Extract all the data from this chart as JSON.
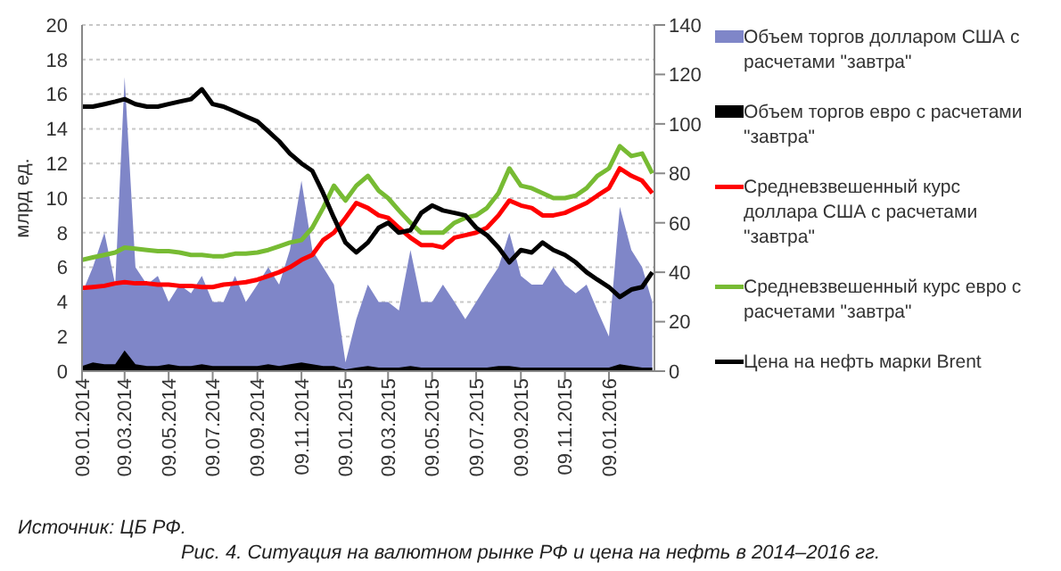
{
  "chart_data": {
    "type": "line",
    "ylabel": "млрд ед.",
    "x": [
      "2014-01-09",
      "2014-01-24",
      "2014-02-09",
      "2014-02-24",
      "2014-03-09",
      "2014-03-24",
      "2014-04-09",
      "2014-04-24",
      "2014-05-09",
      "2014-05-24",
      "2014-06-09",
      "2014-06-24",
      "2014-07-09",
      "2014-07-24",
      "2014-08-09",
      "2014-08-24",
      "2014-09-09",
      "2014-09-24",
      "2014-10-09",
      "2014-10-24",
      "2014-11-09",
      "2014-11-24",
      "2014-12-09",
      "2014-12-24",
      "2015-01-09",
      "2015-01-24",
      "2015-02-09",
      "2015-02-24",
      "2015-03-09",
      "2015-03-24",
      "2015-04-09",
      "2015-04-24",
      "2015-05-09",
      "2015-05-24",
      "2015-06-09",
      "2015-06-24",
      "2015-07-09",
      "2015-07-24",
      "2015-08-09",
      "2015-08-24",
      "2015-09-09",
      "2015-09-24",
      "2015-10-09",
      "2015-10-24",
      "2015-11-09",
      "2015-11-24",
      "2015-12-09",
      "2015-12-24",
      "2016-01-09",
      "2016-01-24",
      "2016-02-09",
      "2016-02-24",
      "2016-03-09"
    ],
    "series": [
      {
        "name": "Объем торгов долларом США с расчетами \"завтра\"",
        "type": "area",
        "color": "#7f86c8",
        "values": [
          4.5,
          6,
          8,
          5,
          17,
          6,
          5,
          5.5,
          4,
          5,
          4.5,
          5.5,
          4,
          4,
          5.5,
          4,
          5,
          6,
          5,
          7,
          11,
          7,
          6,
          5,
          0.5,
          3,
          5,
          4,
          4,
          3.5,
          7,
          4,
          4,
          5,
          4,
          3,
          4,
          5,
          6,
          8,
          5.5,
          5,
          5,
          6,
          5,
          4.5,
          5,
          3.5,
          2,
          9.5,
          7,
          6,
          4
        ]
      },
      {
        "name": "Объем торгов евро с расчетами \"завтра\"",
        "type": "area",
        "color": "#000000",
        "values": [
          0.3,
          0.5,
          0.4,
          0.4,
          1.2,
          0.4,
          0.3,
          0.3,
          0.4,
          0.3,
          0.3,
          0.4,
          0.3,
          0.3,
          0.3,
          0.3,
          0.3,
          0.4,
          0.3,
          0.4,
          0.5,
          0.4,
          0.3,
          0.3,
          0.1,
          0.2,
          0.3,
          0.2,
          0.2,
          0.2,
          0.3,
          0.2,
          0.2,
          0.2,
          0.2,
          0.2,
          0.2,
          0.2,
          0.3,
          0.3,
          0.2,
          0.2,
          0.2,
          0.2,
          0.2,
          0.2,
          0.2,
          0.2,
          0.2,
          0.4,
          0.3,
          0.2,
          0.2
        ]
      },
      {
        "name": "Средневзвешенный курс доллара США с расчетами \"завтра\"",
        "type": "line",
        "axis": "y2",
        "color": "#ff0000",
        "values": [
          33.6,
          34,
          34.5,
          35.5,
          36,
          35.5,
          35.5,
          35,
          35,
          34.5,
          34.5,
          34,
          34,
          35,
          35.5,
          36,
          37,
          38.5,
          40,
          42,
          45,
          47,
          53,
          56,
          62,
          68,
          66,
          63,
          62,
          58,
          54,
          51,
          51,
          50,
          54,
          55,
          56,
          58,
          63,
          69,
          67,
          66,
          63,
          63,
          64,
          66,
          68,
          71,
          74,
          82,
          79,
          77,
          72
        ]
      },
      {
        "name": "Средневзвешенный курс евро с расчетами \"завтра\"",
        "type": "line",
        "axis": "y2",
        "color": "#77bb33",
        "values": [
          45,
          46,
          47,
          48,
          50,
          49.5,
          49,
          48.5,
          48.5,
          48,
          47,
          47,
          46.5,
          46.5,
          47.5,
          47.5,
          48,
          49,
          50.5,
          52,
          53,
          58,
          66,
          75,
          69,
          75,
          79,
          73,
          70,
          65,
          60,
          56,
          56,
          56,
          60,
          62,
          63,
          66,
          72,
          82,
          75,
          74,
          72,
          70,
          70,
          71,
          74,
          79,
          82,
          91,
          87,
          88,
          80
        ]
      },
      {
        "name": "Цена на нефть марки Brent",
        "axis": "y2",
        "color": "#000000",
        "values": [
          107,
          107,
          108,
          109,
          110,
          108,
          107,
          107,
          108,
          109,
          110,
          114,
          108,
          107,
          105,
          103,
          101,
          97,
          93,
          88,
          84,
          81,
          72,
          62,
          52,
          48,
          52,
          58,
          60,
          56,
          57,
          64,
          67,
          65,
          64,
          63,
          58,
          55,
          50,
          44,
          49,
          48,
          52,
          49,
          47,
          44,
          40,
          37,
          34,
          30,
          33,
          34,
          40
        ]
      }
    ],
    "xlim": [
      "2014-01-09",
      "2016-03-12"
    ],
    "xticks": [
      {
        "value": "2014-01-09",
        "label": "09.01.2014"
      },
      {
        "value": "2014-03-09",
        "label": "09.03.2014"
      },
      {
        "value": "2014-05-09",
        "label": "09.05.2014"
      },
      {
        "value": "2014-07-09",
        "label": "09.07.2014"
      },
      {
        "value": "2014-09-09",
        "label": "09.09.2014"
      },
      {
        "value": "2014-11-09",
        "label": "09.11.2014"
      },
      {
        "value": "2015-01-09",
        "label": "09.01.2015"
      },
      {
        "value": "2015-03-09",
        "label": "09.03.2015"
      },
      {
        "value": "2015-05-09",
        "label": "09.05.2015"
      },
      {
        "value": "2015-07-09",
        "label": "09.07.2015"
      },
      {
        "value": "2015-09-09",
        "label": "09.09.2015"
      },
      {
        "value": "2015-11-09",
        "label": "09.11.2015"
      },
      {
        "value": "2016-01-09",
        "label": "09.01.2016"
      }
    ],
    "ylim": [
      0,
      20
    ],
    "yticks": [
      0,
      2,
      4,
      6,
      8,
      10,
      12,
      14,
      16,
      18,
      20
    ],
    "y2lim": [
      0,
      140
    ],
    "y2ticks": [
      0,
      20,
      40,
      60,
      80,
      100,
      120,
      140
    ],
    "grid": "y",
    "legend": "right",
    "marker": "none",
    "annotations": [
      "Источник: ЦБ РФ.",
      "Рис. 4. Ситуация на валютном рынке РФ и цена на нефть в 2014–2016 гг."
    ]
  }
}
